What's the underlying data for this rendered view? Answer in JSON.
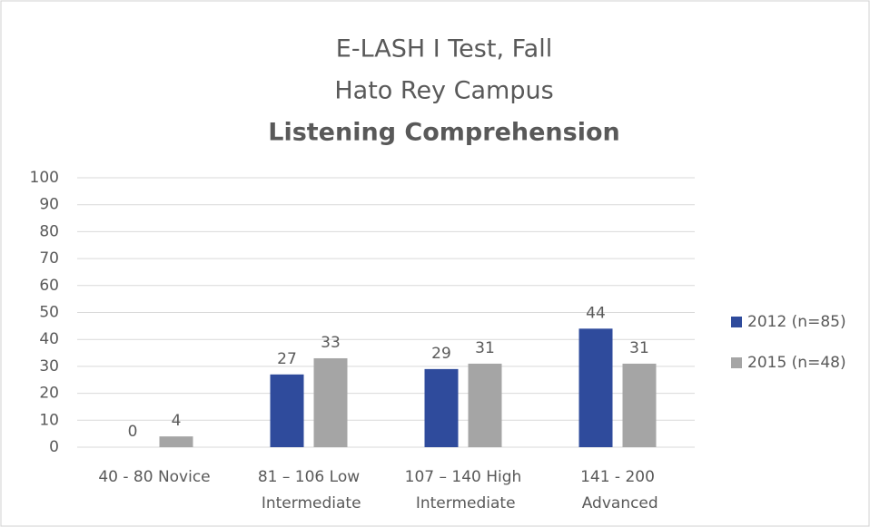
{
  "chart_data": {
    "type": "bar",
    "title": [
      "E-LASH I Test, Fall",
      "Hato Rey Campus",
      "Listening Comprehension"
    ],
    "categories": [
      "40 - 80 Novice",
      "81 – 106 Low Intermediate",
      "107 – 140 High Intermediate",
      "141 - 200 Advanced"
    ],
    "series": [
      {
        "name": "2012 (n=85)",
        "color": "#2f4b9c",
        "values": [
          0,
          27,
          29,
          44
        ]
      },
      {
        "name": "2015 (n=48)",
        "color": "#a5a5a5",
        "values": [
          4,
          33,
          31,
          31
        ]
      }
    ],
    "ylim": [
      0,
      100
    ],
    "yticks": [
      0,
      10,
      20,
      30,
      40,
      50,
      60,
      70,
      80,
      90,
      100
    ],
    "grid": true,
    "legend": "right"
  }
}
